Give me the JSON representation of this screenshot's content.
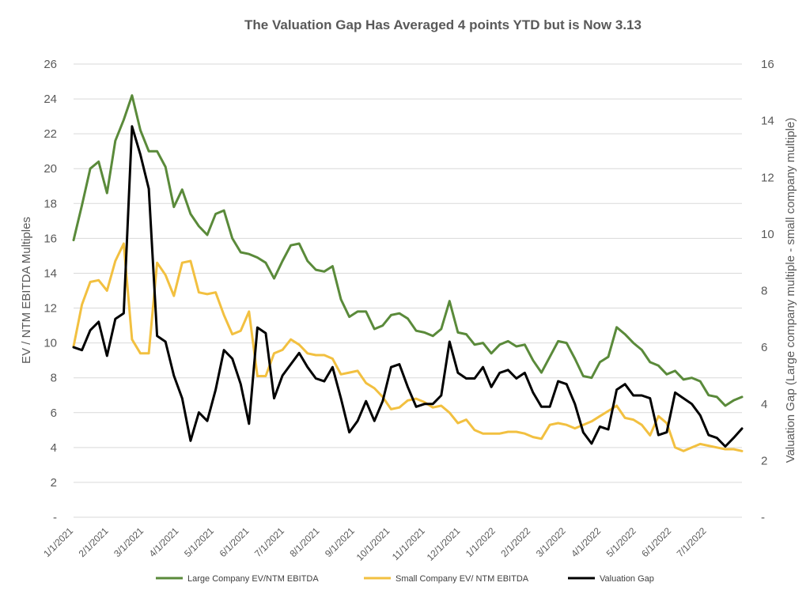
{
  "chart_data": {
    "type": "line",
    "title": "The Valuation Gap Has Averaged 4 points YTD but is Now 3.13",
    "ylabel": "EV / NTM EBITDA Multiples",
    "y2label": "Valuation Gap (Large company multiple - small company multiple)",
    "ylim": [
      0,
      26
    ],
    "y2lim": [
      0,
      16
    ],
    "yticks": [
      "-",
      "2",
      "4",
      "6",
      "8",
      "10",
      "12",
      "14",
      "16",
      "18",
      "20",
      "22",
      "24",
      "26"
    ],
    "y2ticks": [
      "-",
      "2",
      "4",
      "6",
      "8",
      "10",
      "12",
      "14",
      "16"
    ],
    "x_labels": [
      "1/1/2021",
      "2/1/2021",
      "3/1/2021",
      "4/1/2021",
      "5/1/2021",
      "6/1/2021",
      "7/1/2021",
      "8/1/2021",
      "9/1/2021",
      "10/1/2021",
      "11/1/2021",
      "12/1/2021",
      "1/1/2022",
      "2/1/2022",
      "3/1/2022",
      "4/1/2022",
      "5/1/2022",
      "6/1/2022",
      "7/1/2022"
    ],
    "grid": true,
    "legend_position": "bottom",
    "series": [
      {
        "name": "Large Company EV/NTM EBITDA",
        "axis": "left",
        "color": "#5a8a3a",
        "values": [
          15.9,
          17.9,
          20.0,
          20.4,
          18.6,
          21.6,
          22.8,
          24.2,
          22.2,
          21.0,
          21.0,
          20.1,
          17.8,
          18.8,
          17.4,
          16.7,
          16.2,
          17.4,
          17.6,
          16.0,
          15.2,
          15.1,
          14.9,
          14.6,
          13.7,
          14.7,
          15.6,
          15.7,
          14.7,
          14.2,
          14.1,
          14.4,
          12.5,
          11.5,
          11.8,
          11.8,
          10.8,
          11.0,
          11.6,
          11.7,
          11.4,
          10.7,
          10.6,
          10.4,
          10.8,
          12.4,
          10.6,
          10.5,
          9.9,
          10.0,
          9.4,
          9.9,
          10.1,
          9.8,
          9.9,
          9.0,
          8.3,
          9.2,
          10.1,
          10.0,
          9.1,
          8.1,
          8.0,
          8.9,
          9.2,
          10.9,
          10.5,
          10.0,
          9.6,
          8.9,
          8.7,
          8.2,
          8.4,
          7.9,
          8.0,
          7.8,
          7.0,
          6.9,
          6.4,
          6.7,
          6.9
        ]
      },
      {
        "name": "Small Company EV/ NTM EBITDA",
        "axis": "left",
        "color": "#f2c040",
        "values": [
          9.8,
          12.2,
          13.5,
          13.6,
          13.0,
          14.7,
          15.7,
          10.2,
          9.4,
          9.4,
          14.6,
          13.9,
          12.7,
          14.6,
          14.7,
          12.9,
          12.8,
          12.9,
          11.6,
          10.5,
          10.7,
          11.8,
          8.1,
          8.1,
          9.4,
          9.6,
          10.2,
          9.9,
          9.4,
          9.3,
          9.3,
          9.1,
          8.2,
          8.3,
          8.4,
          7.7,
          7.4,
          6.9,
          6.2,
          6.3,
          6.7,
          6.8,
          6.6,
          6.3,
          6.4,
          6.0,
          5.4,
          5.6,
          5.0,
          4.8,
          4.8,
          4.8,
          4.9,
          4.9,
          4.8,
          4.6,
          4.5,
          5.3,
          5.4,
          5.3,
          5.1,
          5.3,
          5.5,
          5.8,
          6.1,
          6.4,
          5.7,
          5.6,
          5.3,
          4.7,
          5.8,
          5.4,
          4.0,
          3.8,
          4.0,
          4.2,
          4.1,
          4.0,
          3.9,
          3.9,
          3.8
        ]
      },
      {
        "name": "Valuation Gap",
        "axis": "right",
        "color": "#000000",
        "values": [
          6.0,
          5.9,
          6.6,
          6.9,
          5.7,
          7.0,
          7.2,
          13.8,
          12.8,
          11.6,
          6.4,
          6.2,
          5.0,
          4.2,
          2.7,
          3.7,
          3.4,
          4.5,
          5.9,
          5.6,
          4.7,
          3.3,
          6.7,
          6.5,
          4.2,
          5.0,
          5.4,
          5.8,
          5.3,
          4.9,
          4.8,
          5.3,
          4.2,
          3.0,
          3.4,
          4.1,
          3.4,
          4.1,
          5.3,
          5.4,
          4.6,
          3.9,
          4.0,
          4.0,
          4.3,
          6.2,
          5.1,
          4.9,
          4.9,
          5.3,
          4.6,
          5.1,
          5.2,
          4.9,
          5.1,
          4.4,
          3.9,
          3.9,
          4.8,
          4.7,
          4.0,
          3.0,
          2.6,
          3.2,
          3.1,
          4.5,
          4.7,
          4.3,
          4.3,
          4.2,
          2.9,
          3.0,
          4.4,
          4.2,
          4.0,
          3.6,
          2.9,
          2.8,
          2.5,
          2.8,
          3.13
        ]
      }
    ]
  }
}
